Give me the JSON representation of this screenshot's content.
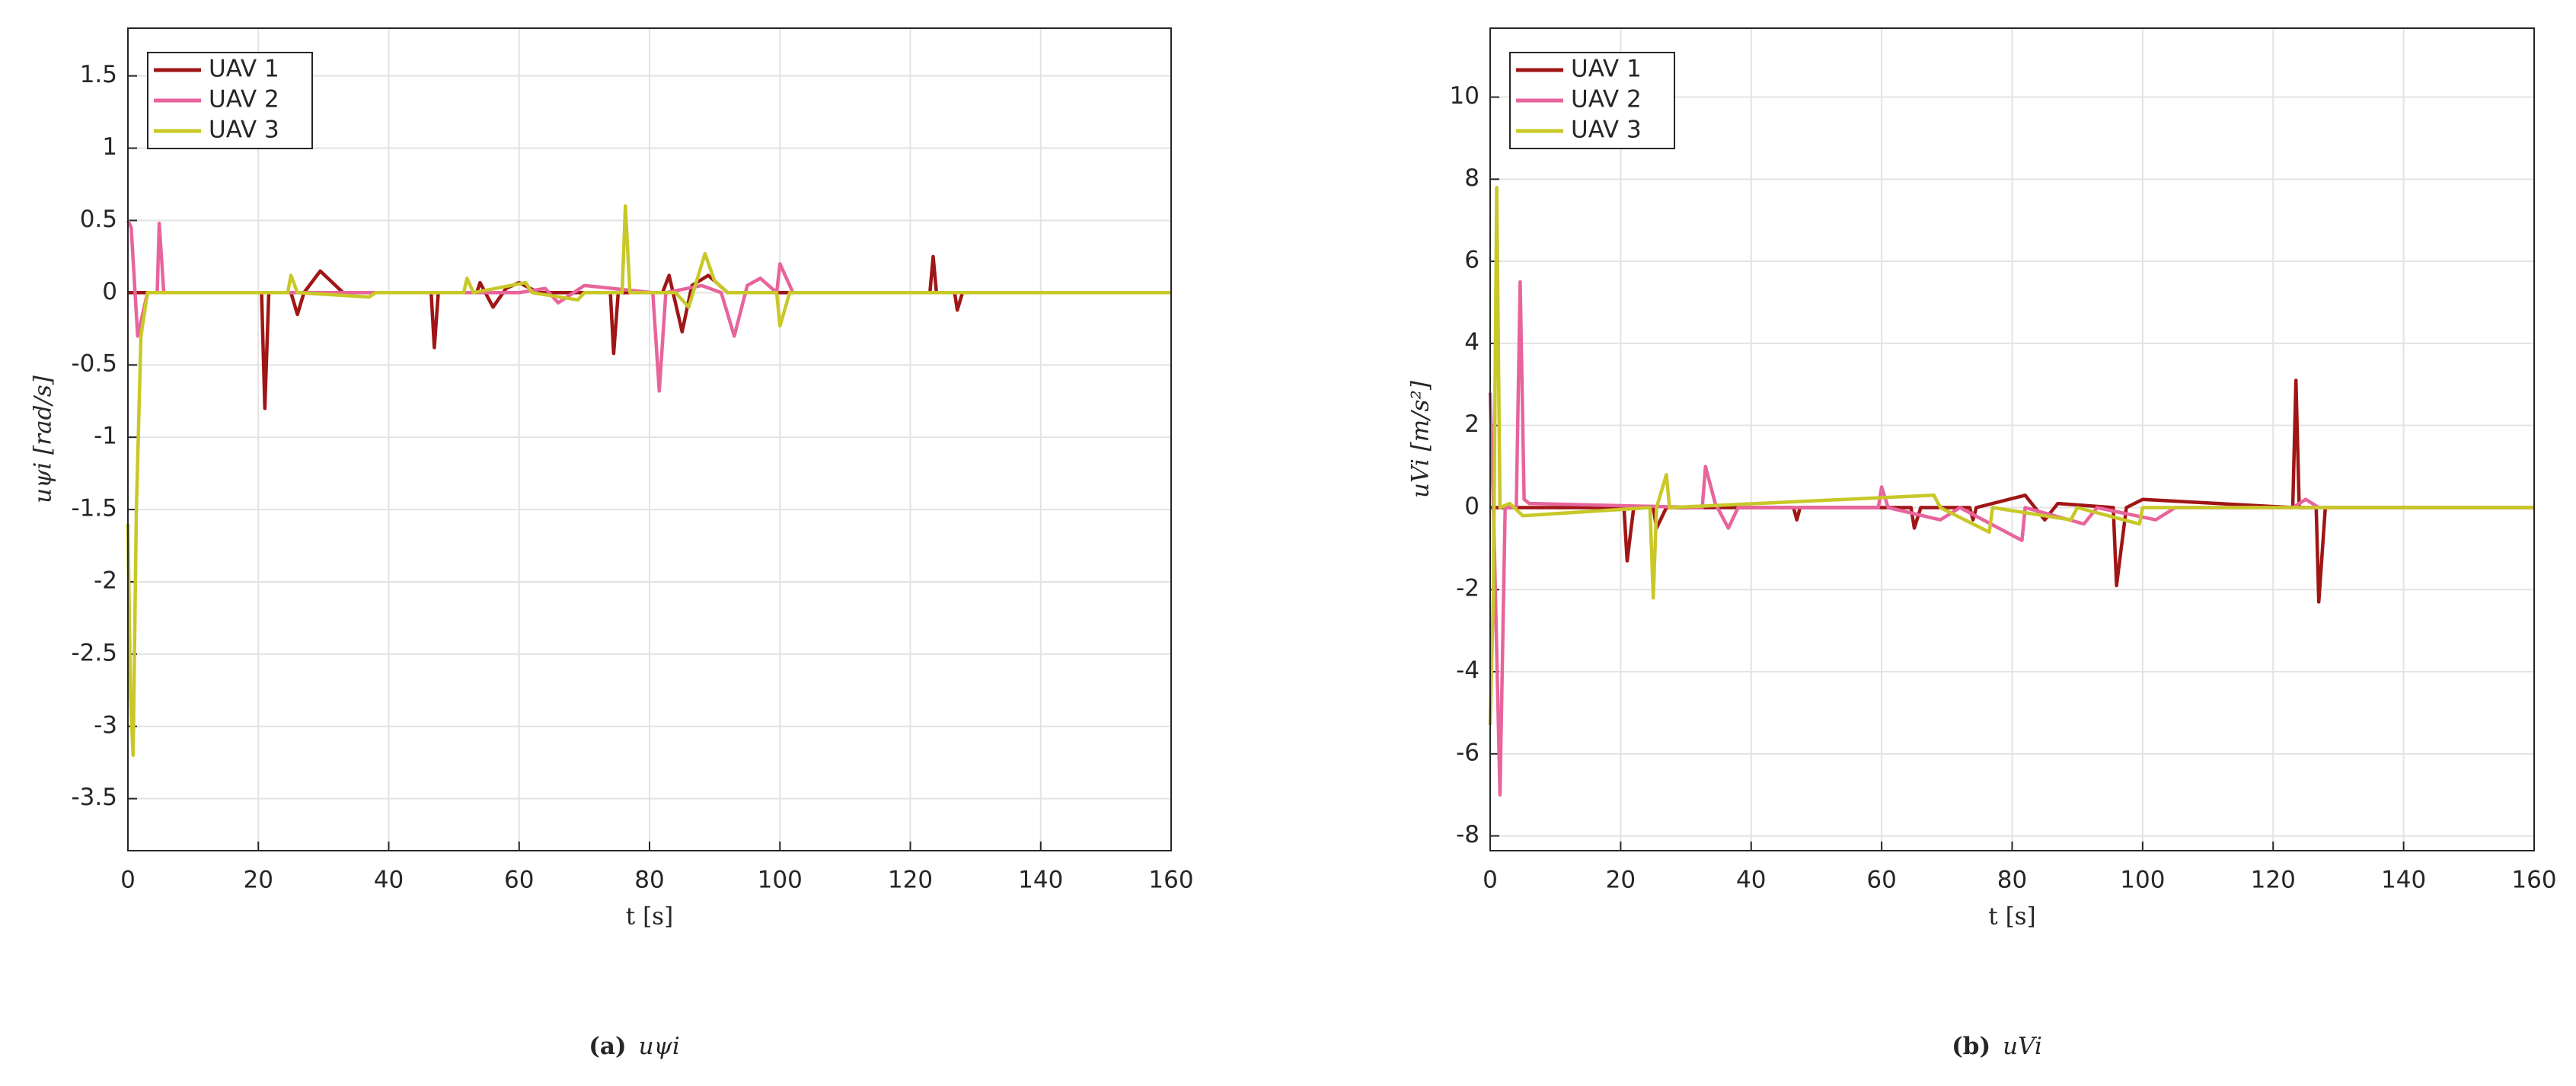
{
  "chart_data": [
    {
      "type": "line",
      "xlabel": "t [s]",
      "ylabel": "uψi [rad/s]",
      "caption_label": "(a)",
      "caption": "uψi",
      "xlim": [
        0,
        160
      ],
      "xticks": [
        0,
        20,
        40,
        60,
        80,
        100,
        120,
        140,
        160
      ],
      "ylim": [
        -3.86,
        1.83
      ],
      "yticks": [
        -3.5,
        -3,
        -2.5,
        -2,
        -1.5,
        -1,
        -0.5,
        0,
        0.5,
        1,
        1.5
      ],
      "grid": true,
      "legend": "upper left",
      "series": [
        {
          "name": "UAV 1",
          "color": "#a01515",
          "x": [
            0,
            20.5,
            21,
            21.6,
            25,
            26,
            27,
            29.5,
            33,
            46.5,
            47,
            47.6,
            53.5,
            54,
            56,
            58,
            60,
            63,
            74,
            74.5,
            75.2,
            82,
            83,
            85,
            86.5,
            89,
            92,
            123,
            123.5,
            124,
            126.8,
            127.2,
            128,
            160
          ],
          "values": [
            0,
            0,
            -0.8,
            0,
            0,
            -0.15,
            0,
            0.15,
            0,
            0,
            -0.38,
            0,
            0,
            0.07,
            -0.1,
            0.03,
            0.07,
            0,
            0,
            -0.42,
            0,
            0,
            0.12,
            -0.27,
            0.05,
            0.12,
            0,
            0,
            0.25,
            0,
            0,
            -0.12,
            0,
            0
          ]
        },
        {
          "name": "UAV 2",
          "color": "#e8649c",
          "x": [
            0,
            0.5,
            1.5,
            3,
            4.5,
            4.8,
            5.5,
            60,
            64,
            66,
            70,
            80.5,
            81.5,
            82.5,
            88,
            91,
            93,
            95,
            97,
            99.5,
            100,
            102,
            160
          ],
          "values": [
            0.5,
            0.45,
            -0.3,
            0,
            0,
            0.48,
            0,
            0,
            0.03,
            -0.07,
            0.05,
            0,
            -0.68,
            0,
            0.05,
            0,
            -0.3,
            0.05,
            0.1,
            0,
            0.2,
            0,
            0
          ]
        },
        {
          "name": "UAV 3",
          "color": "#c8c828",
          "x": [
            0,
            0.4,
            0.8,
            1.3,
            2,
            3,
            24.5,
            25,
            26,
            37,
            38,
            51.5,
            52,
            53,
            61,
            62,
            69,
            70,
            75.8,
            76.3,
            77,
            84,
            86,
            88.5,
            90,
            92,
            99.5,
            100,
            101.5,
            160
          ],
          "values": [
            -1.6,
            -2.8,
            -3.2,
            -1.5,
            -0.3,
            0,
            0,
            0.12,
            0,
            -0.03,
            0,
            0,
            0.1,
            0,
            0.07,
            0,
            -0.05,
            0,
            0,
            0.6,
            0,
            0,
            -0.1,
            0.27,
            0.08,
            0,
            0,
            -0.23,
            0,
            0
          ]
        }
      ]
    },
    {
      "type": "line",
      "xlabel": "t [s]",
      "ylabel": "uVi [m/s²]",
      "caption_label": "(b)",
      "caption": "uVi",
      "xlim": [
        0,
        160
      ],
      "xticks": [
        0,
        20,
        40,
        60,
        80,
        100,
        120,
        140,
        160
      ],
      "ylim": [
        -8.36,
        11.68
      ],
      "yticks": [
        -8,
        -6,
        -4,
        -2,
        0,
        2,
        4,
        6,
        8,
        10
      ],
      "grid": true,
      "legend": "upper left",
      "series": [
        {
          "name": "UAV 1",
          "color": "#a01515",
          "x": [
            0,
            20.5,
            21,
            22,
            25,
            25.5,
            27,
            46.5,
            47,
            47.5,
            64.5,
            65,
            66,
            73.5,
            74,
            74.5,
            82,
            85,
            87,
            95.5,
            96,
            97.5,
            100,
            123,
            123.5,
            124,
            126.6,
            127,
            128,
            160
          ],
          "values": [
            0,
            0,
            -1.3,
            0,
            0,
            -0.5,
            0,
            0,
            -0.3,
            0,
            0,
            -0.5,
            0,
            0,
            -0.3,
            0,
            0.3,
            -0.3,
            0.1,
            0,
            -1.9,
            0,
            0.2,
            0,
            3.1,
            0,
            0,
            -2.3,
            0,
            0
          ]
        },
        {
          "name": "UAV 2",
          "color": "#e8649c",
          "x": [
            0,
            0.5,
            1.5,
            2.3,
            4,
            4.6,
            5.2,
            6,
            32.5,
            33,
            34.5,
            36.5,
            38,
            59.5,
            60,
            61,
            69,
            72,
            81.5,
            82,
            91,
            93,
            102,
            105,
            123,
            125,
            127,
            160
          ],
          "values": [
            2.8,
            0,
            -7,
            0,
            0,
            5.5,
            0.2,
            0.1,
            0,
            1,
            0.1,
            -0.5,
            0,
            0,
            0.5,
            0,
            -0.3,
            0,
            -0.8,
            0,
            -0.4,
            0,
            -0.3,
            0,
            0,
            0.2,
            0,
            0
          ]
        },
        {
          "name": "UAV 3",
          "color": "#c8c828",
          "x": [
            0,
            0.5,
            1,
            1.5,
            3,
            5,
            24.5,
            25,
            25.5,
            27,
            27.5,
            68,
            69,
            76.5,
            77,
            89,
            90,
            99.5,
            100,
            160
          ],
          "values": [
            -5.3,
            -2,
            7.8,
            0,
            0.1,
            -0.2,
            0,
            -2.2,
            0,
            0.8,
            0,
            0.3,
            0,
            -0.6,
            0,
            -0.3,
            0,
            -0.4,
            0,
            0
          ]
        }
      ]
    }
  ]
}
